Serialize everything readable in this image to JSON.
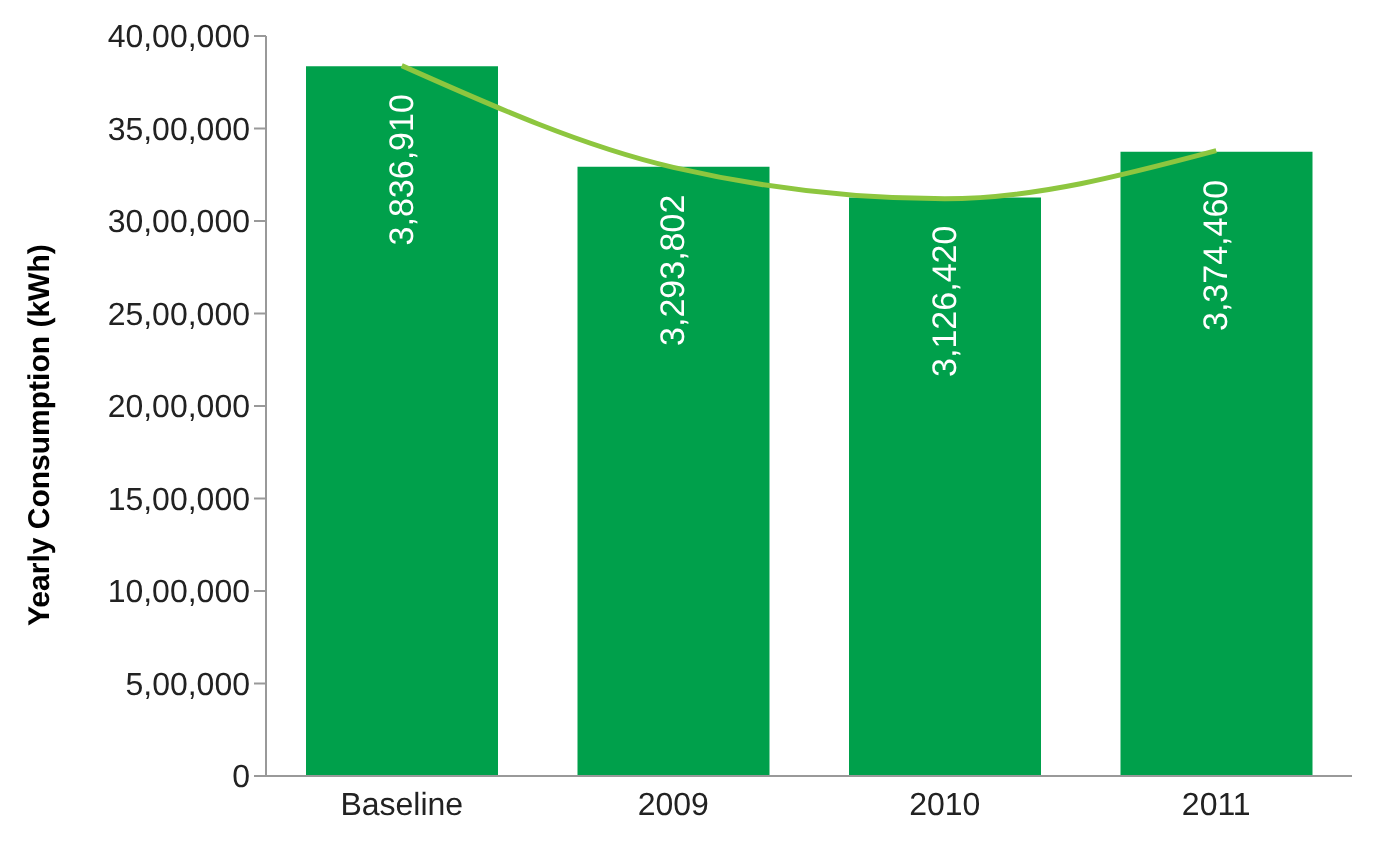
{
  "chart_data": {
    "type": "bar",
    "ylabel": "Yearly Consumption (kWh)",
    "categories": [
      "Baseline",
      "2009",
      "2010",
      "2011"
    ],
    "series": [
      {
        "color": "#00a04b",
        "values": [
          3836910,
          3293802,
          3126420,
          3374460
        ],
        "value_labels": [
          "3,836,910",
          "3,293,802",
          "3,126,420",
          "3,374,460"
        ]
      },
      {
        "type": "line",
        "color": "#8dc63f",
        "values": [
          3840000,
          3290000,
          3120000,
          3380000
        ]
      }
    ],
    "ylim": [
      0,
      4000000
    ],
    "yticks": [
      {
        "value": 0,
        "label": "0"
      },
      {
        "value": 500000,
        "label": "5,00,000"
      },
      {
        "value": 1000000,
        "label": "10,00,000"
      },
      {
        "value": 1500000,
        "label": "15,00,000"
      },
      {
        "value": 2000000,
        "label": "20,00,000"
      },
      {
        "value": 2500000,
        "label": "25,00,000"
      },
      {
        "value": 3000000,
        "label": "30,00,000"
      },
      {
        "value": 3500000,
        "label": "35,00,000"
      },
      {
        "value": 4000000,
        "label": "40,00,000"
      }
    ],
    "grid": false,
    "legend": false,
    "marker": "none",
    "line_style": "solid"
  }
}
